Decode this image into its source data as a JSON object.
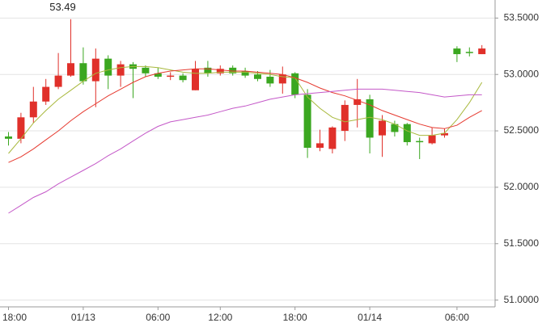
{
  "chart_data": {
    "type": "candlestick",
    "categories": [
      "18:00",
      null,
      null,
      null,
      null,
      null,
      "01/13",
      null,
      null,
      null,
      null,
      null,
      "06:00",
      null,
      null,
      null,
      null,
      "12:00",
      null,
      null,
      null,
      null,
      null,
      "18:00",
      null,
      null,
      null,
      null,
      null,
      "01/14",
      null,
      null,
      null,
      null,
      null,
      null,
      "06:00",
      null,
      null
    ],
    "open": [
      52.45,
      52.43,
      52.62,
      52.76,
      52.89,
      52.99,
      53.1,
      52.94,
      53.14,
      52.99,
      53.09,
      53.06,
      53.01,
      52.98,
      52.99,
      52.86,
      53.06,
      53.01,
      53.06,
      53.03,
      53.0,
      52.98,
      52.92,
      53.01,
      52.82,
      52.35,
      52.34,
      52.5,
      52.73,
      52.78,
      52.46,
      52.56,
      52.56,
      52.41,
      52.39,
      52.46,
      53.23,
      53.2,
      53.18
    ],
    "high": [
      52.49,
      52.66,
      52.89,
      52.96,
      53.19,
      53.49,
      53.24,
      53.23,
      53.17,
      53.12,
      53.11,
      53.08,
      53.06,
      53.02,
      53.01,
      53.12,
      53.12,
      53.08,
      53.08,
      53.06,
      53.03,
      53.04,
      53.07,
      53.02,
      52.87,
      52.51,
      52.54,
      52.77,
      52.96,
      52.82,
      52.64,
      52.59,
      52.57,
      52.44,
      52.53,
      52.52,
      53.25,
      53.24,
      53.26
    ],
    "low": [
      52.37,
      52.39,
      52.57,
      52.73,
      52.87,
      52.98,
      52.91,
      52.71,
      52.87,
      52.89,
      52.79,
      52.98,
      52.96,
      52.95,
      52.93,
      52.86,
      52.98,
      52.99,
      52.99,
      52.97,
      52.94,
      52.89,
      52.83,
      52.79,
      52.26,
      52.32,
      52.3,
      52.41,
      52.53,
      52.3,
      52.27,
      52.45,
      52.37,
      52.25,
      52.38,
      52.44,
      53.11,
      53.16,
      53.18
    ],
    "close": [
      52.43,
      52.62,
      52.76,
      52.89,
      52.99,
      53.1,
      52.94,
      53.14,
      52.99,
      53.09,
      53.05,
      53.01,
      52.98,
      52.99,
      52.95,
      53.05,
      53.01,
      53.05,
      53.01,
      52.99,
      52.96,
      52.92,
      53.0,
      52.82,
      52.35,
      52.39,
      52.53,
      52.73,
      52.78,
      52.44,
      52.59,
      52.49,
      52.4,
      52.4,
      52.46,
      52.48,
      53.18,
      53.19,
      53.23
    ],
    "up_color": "#e0302a",
    "down_color": "#3ba720",
    "series": [
      {
        "color": "#a8b83c",
        "values": [
          52.3,
          52.43,
          52.57,
          52.68,
          52.78,
          52.86,
          52.94,
          53.01,
          53.04,
          53.06,
          53.07,
          53.07,
          53.06,
          53.04,
          53.02,
          53.01,
          53.01,
          53.02,
          53.02,
          53.02,
          53.01,
          53.0,
          52.98,
          52.97,
          52.8,
          52.7,
          52.62,
          52.58,
          52.6,
          52.62,
          52.6,
          52.56,
          52.5,
          52.46,
          52.46,
          52.48,
          52.6,
          52.75,
          52.93
        ]
      },
      {
        "color": "#e63a30",
        "values": [
          52.22,
          52.27,
          52.34,
          52.42,
          52.5,
          52.59,
          52.67,
          52.74,
          52.81,
          52.87,
          52.93,
          52.98,
          53.01,
          53.03,
          53.04,
          53.05,
          53.05,
          53.04,
          53.03,
          53.03,
          53.02,
          53.01,
          53.0,
          52.97,
          52.93,
          52.88,
          52.84,
          52.81,
          52.77,
          52.73,
          52.68,
          52.64,
          52.6,
          52.56,
          52.53,
          52.52,
          52.55,
          52.62,
          52.68
        ]
      },
      {
        "color": "#c458c8",
        "values": [
          51.77,
          51.84,
          51.91,
          51.96,
          52.03,
          52.09,
          52.15,
          52.21,
          52.28,
          52.34,
          52.41,
          52.48,
          52.54,
          52.58,
          52.6,
          52.62,
          52.64,
          52.67,
          52.7,
          52.72,
          52.75,
          52.78,
          52.8,
          52.82,
          52.83,
          52.84,
          52.85,
          52.86,
          52.87,
          52.87,
          52.87,
          52.86,
          52.85,
          52.84,
          52.82,
          52.8,
          52.81,
          52.82,
          52.82
        ]
      }
    ],
    "ylim": [
      50.94,
      53.66
    ],
    "yticks": [
      {
        "value": 51,
        "label": "51.0000"
      },
      {
        "value": 51.5,
        "label": "51.5000"
      },
      {
        "value": 52,
        "label": "52.0000"
      },
      {
        "value": 52.5,
        "label": "52.5000"
      },
      {
        "value": 53,
        "label": "53.0000"
      },
      {
        "value": 53.5,
        "label": "53.5000"
      }
    ],
    "grid": true
  }
}
